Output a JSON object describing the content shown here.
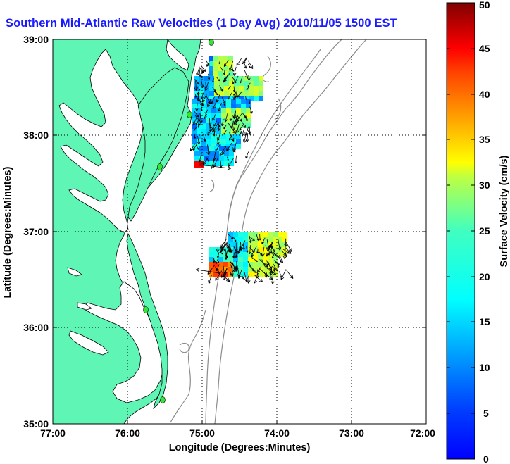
{
  "title": "Southern Mid-Atlantic Raw Velocities (1 Day Avg) 2010/11/05 1500 EST",
  "map": {
    "xlabel": "Longitude (Degrees:Minutes)",
    "ylabel": "Latitude (Degrees:Minutes)",
    "x_ticks": [
      "77:00",
      "76:00",
      "75:00",
      "74:00",
      "73:00",
      "72:00"
    ],
    "y_ticks": [
      "39:00",
      "38:00",
      "37:00",
      "36:00",
      "35:00"
    ],
    "land_color": "#5ff5b4",
    "bathymetry_color": "#8c8c8c",
    "grid": true,
    "station_color": "#32e632"
  },
  "colorbar": {
    "label": "Surface Velocity (cm/s)",
    "ticks": [
      "50",
      "45",
      "40",
      "35",
      "30",
      "25",
      "20",
      "15",
      "10",
      "5",
      "0"
    ],
    "min": 0,
    "max": 50,
    "colormap": "jet"
  }
}
